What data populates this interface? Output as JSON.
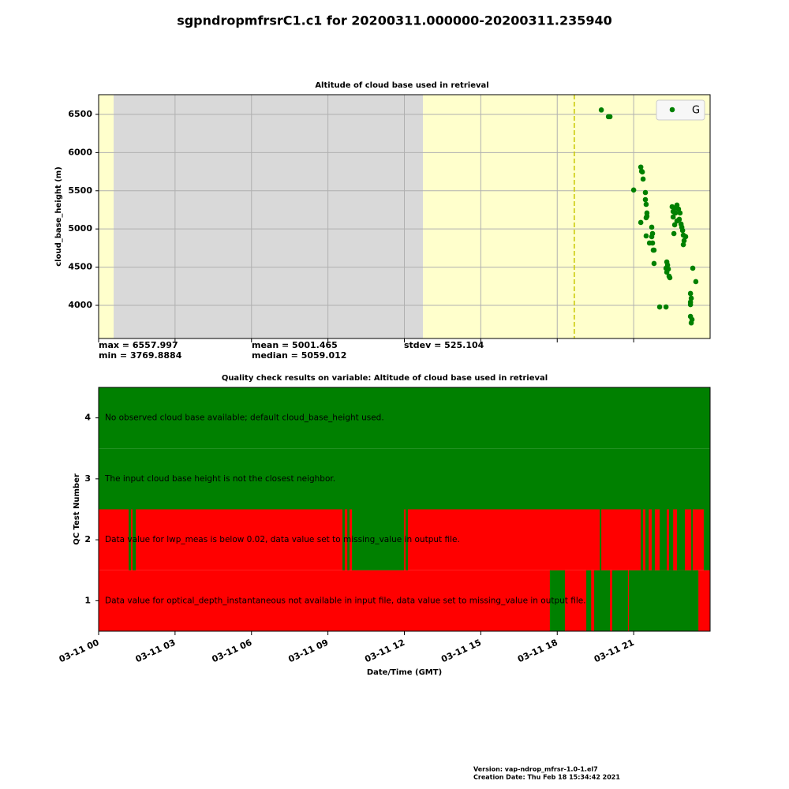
{
  "title": "sgpndropmfrsrC1.c1 for 20200311.000000-20200311.235940",
  "footer": [
    "Version: vap-ndrop_mfrsr-1.0-1.el7",
    "Creation Date: Thu Feb 18 15:34:42 2021"
  ],
  "chart_data": [
    {
      "type": "scatter",
      "title": "Altitude of cloud base used in retrieval",
      "y_label": "cloud_base_height (m)",
      "legend": "upper right",
      "grid": true,
      "series": [
        {
          "name": "G",
          "color": "#008000",
          "x": [
            19.73,
            20.01,
            20.07,
            21.0,
            21.28,
            21.31,
            21.34,
            21.37,
            21.46,
            21.46,
            21.49,
            21.52,
            21.52,
            21.49,
            21.28,
            21.71,
            21.74,
            21.71,
            21.49,
            21.62,
            21.74,
            21.77,
            21.8,
            21.8,
            22.3,
            22.33,
            22.27,
            22.36,
            22.3,
            22.39,
            22.42,
            22.02,
            22.27,
            22.51,
            22.61,
            22.55,
            22.64,
            22.7,
            22.76,
            22.82,
            22.55,
            22.7,
            22.61,
            22.79,
            22.86,
            22.89,
            22.92,
            22.58,
            22.95,
            23.04,
            22.98,
            22.95,
            23.32,
            23.44,
            23.23,
            23.26,
            23.23,
            23.23,
            23.23,
            23.29,
            23.26
          ],
          "values": [
            6558,
            6470,
            6470,
            5510,
            5810,
            5756,
            5746,
            5653,
            5477,
            5384,
            5322,
            5209,
            5167,
            5147,
            5085,
            5023,
            4940,
            4899,
            4909,
            4816,
            4816,
            4723,
            4723,
            4548,
            4568,
            4527,
            4486,
            4475,
            4434,
            4382,
            4362,
            3979,
            3979,
            5291,
            5271,
            5229,
            5209,
            5312,
            5260,
            5209,
            5157,
            5105,
            5054,
            5126,
            5064,
            5023,
            4981,
            4940,
            4919,
            4899,
            4847,
            4795,
            4486,
            4310,
            4155,
            4093,
            4041,
            4010,
            3855,
            3814,
            3770
          ]
        }
      ],
      "spans": [
        {
          "start": 0,
          "end": 0.59,
          "color": "#ffffcc"
        },
        {
          "start": 0.59,
          "end": 12.73,
          "color": "#d9d9d9"
        },
        {
          "start": 12.73,
          "end": 24,
          "color": "#ffffcc"
        }
      ],
      "vline": {
        "x": 18.67,
        "color": "#c8c800"
      },
      "xlim": [
        0,
        24
      ],
      "xticks": [
        0,
        3,
        6,
        9,
        12,
        15,
        18,
        21
      ],
      "ylim": [
        3566,
        6758
      ],
      "yticks": [
        4000,
        4500,
        5000,
        5500,
        6000,
        6500
      ],
      "annotations": [
        "max = 6557.997",
        "min = 3769.8884",
        "mean = 5001.465",
        "median = 5059.012",
        "stdev = 525.104"
      ]
    },
    {
      "type": "heatmap",
      "title": "Quality check results on variable: Altitude of cloud base used in retrieval",
      "x_label": "Date/Time (GMT)",
      "y_label": "QC Test Number",
      "xlim": [
        0,
        24
      ],
      "xticks": [
        {
          "value": 0,
          "label": "03-11 00"
        },
        {
          "value": 3,
          "label": "03-11 03"
        },
        {
          "value": 6,
          "label": "03-11 06"
        },
        {
          "value": 9,
          "label": "03-11 09"
        },
        {
          "value": 12,
          "label": "03-11 12"
        },
        {
          "value": 15,
          "label": "03-11 15"
        },
        {
          "value": 18,
          "label": "03-11 18"
        },
        {
          "value": 21,
          "label": "03-11 21"
        }
      ],
      "ylim": [
        0.5,
        4.5
      ],
      "yticks": [
        1,
        2,
        3,
        4
      ],
      "rows": [
        {
          "test": 1,
          "label": "Data value  for optical_depth_instantaneous not available in input file, data value set to missing_value in output file.",
          "base": "#ff0000",
          "span_color": "#008000",
          "spans": [
            [
              17.71,
              18.3
            ],
            [
              19.14,
              19.33
            ],
            [
              19.45,
              20.07
            ],
            [
              20.16,
              20.78
            ],
            [
              20.81,
              23.54
            ]
          ]
        },
        {
          "test": 2,
          "label": "Data value for lwp_meas is below 0.02, data value set to missing_value in output file.",
          "base": "#ff0000",
          "span_color": "#008000",
          "spans": [
            [
              1.18,
              1.27
            ],
            [
              1.33,
              1.46
            ],
            [
              9.57,
              9.66
            ],
            [
              9.76,
              9.85
            ],
            [
              9.94,
              11.99
            ],
            [
              12.05,
              12.14
            ],
            [
              19.67,
              19.73
            ],
            [
              21.28,
              21.37
            ],
            [
              21.46,
              21.59
            ],
            [
              21.71,
              21.83
            ],
            [
              22.02,
              22.3
            ],
            [
              22.39,
              22.55
            ],
            [
              22.7,
              23.01
            ],
            [
              23.26,
              23.32
            ],
            [
              23.75,
              24
            ]
          ]
        },
        {
          "test": 3,
          "label": "The input cloud base height is not the closest neighbor.",
          "base": "#008000",
          "span_color": "#ff0000",
          "spans": []
        },
        {
          "test": 4,
          "label": "No observed cloud base available; default cloud_base_height used.",
          "base": "#008000",
          "span_color": "#ff0000",
          "spans": []
        }
      ]
    }
  ]
}
